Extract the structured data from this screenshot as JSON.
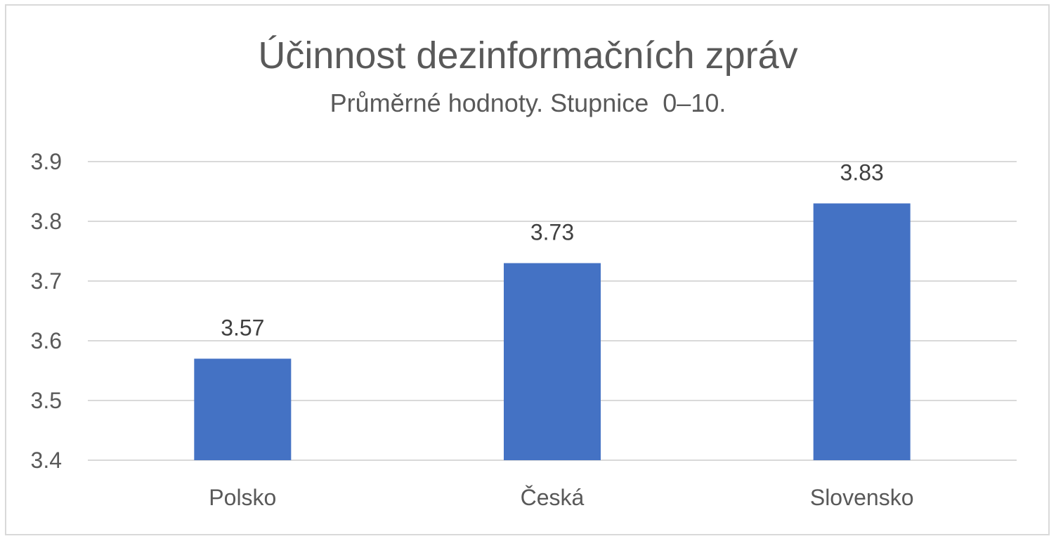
{
  "chart_data": {
    "type": "bar",
    "title": "Účinnost dezinformačních zpráv",
    "subtitle": "Průměrné hodnoty. Stupnice  0–10.",
    "categories": [
      "Polsko",
      "Česká",
      "Slovensko"
    ],
    "values": [
      3.57,
      3.73,
      3.83
    ],
    "value_labels": [
      "3.57",
      "3.73",
      "3.83"
    ],
    "ylim": [
      3.4,
      3.9
    ],
    "y_ticks": [
      "3.4",
      "3.5",
      "3.6",
      "3.7",
      "3.8",
      "3.9"
    ],
    "xlabel": "",
    "ylabel": "",
    "grid": true,
    "legend": "none",
    "bar_color": "#4472c4",
    "grid_color": "#d9d9d9"
  }
}
